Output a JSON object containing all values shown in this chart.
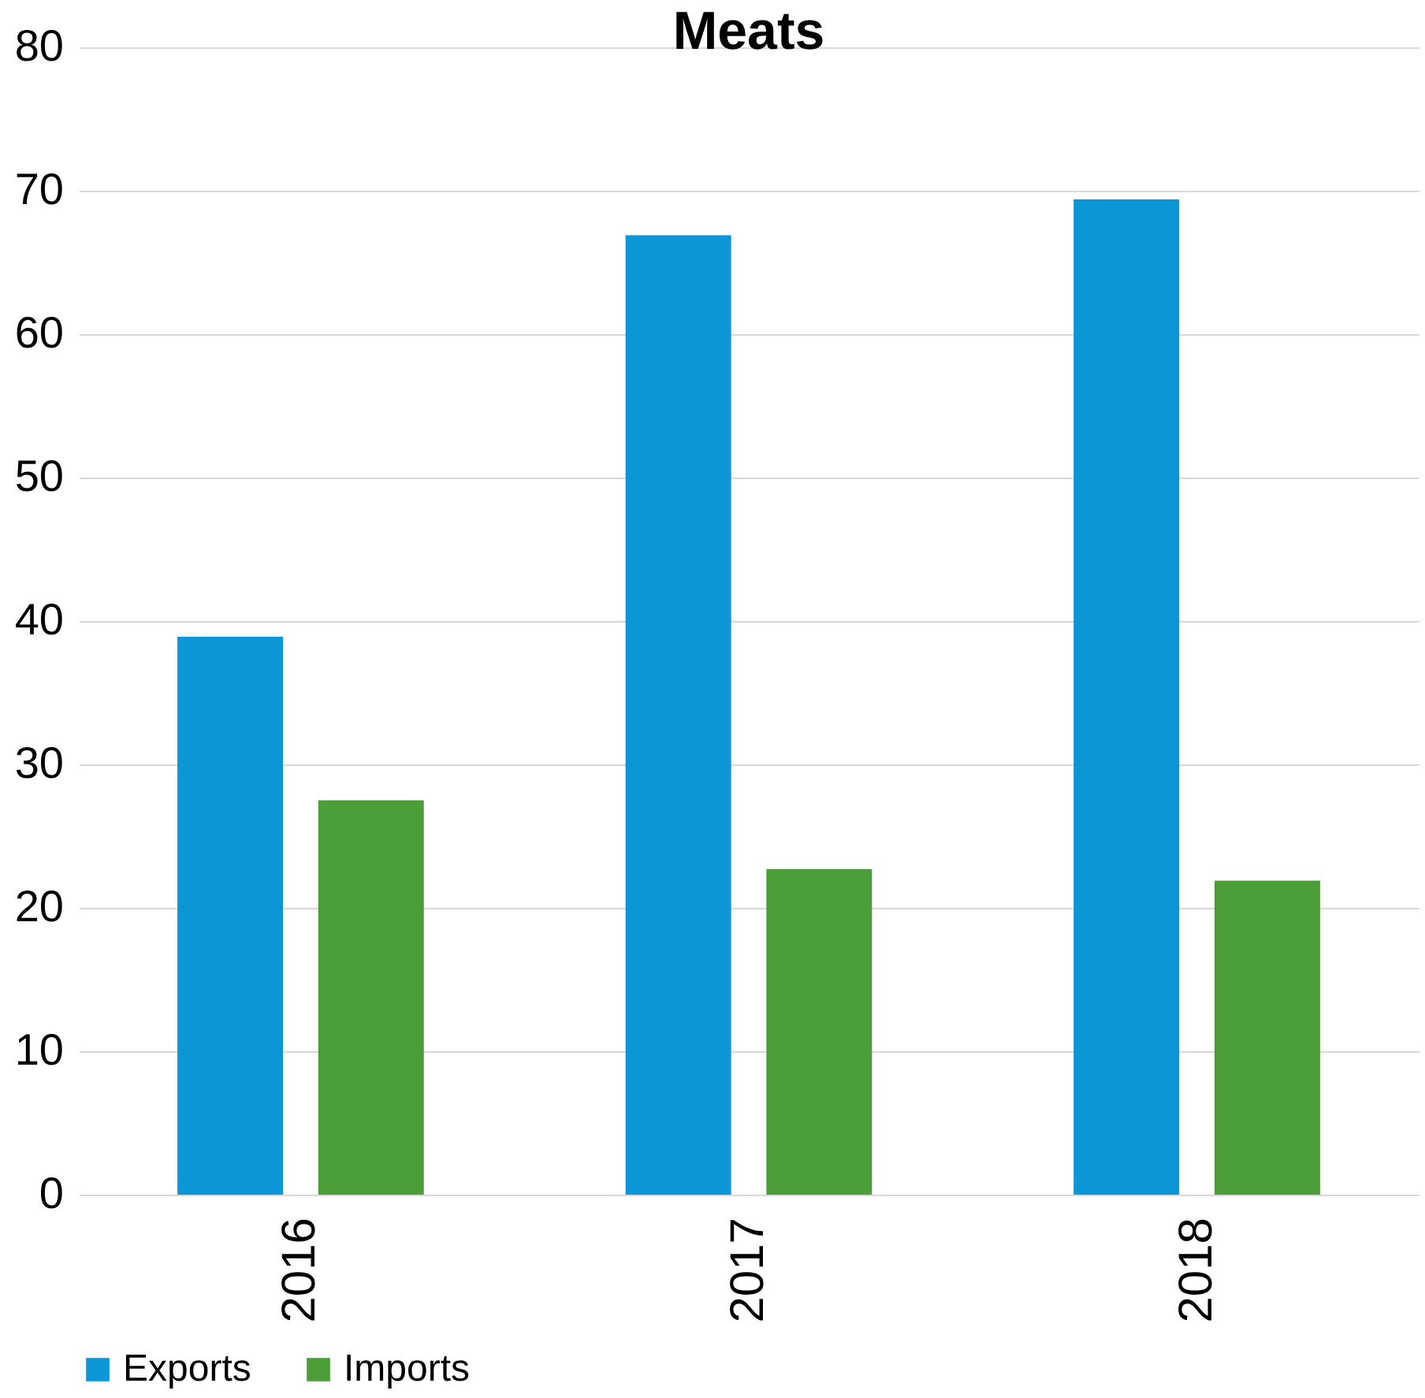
{
  "chart_data": {
    "type": "bar",
    "title": "Meats",
    "categories": [
      "2016",
      "2017",
      "2018"
    ],
    "series": [
      {
        "name": "Exports",
        "color": "#0b96d8",
        "values": [
          38.9,
          66.9,
          69.4
        ]
      },
      {
        "name": "Imports",
        "color": "#4c9f38",
        "values": [
          27.5,
          22.7,
          21.9
        ]
      }
    ],
    "ylim": [
      0,
      80
    ],
    "yticks": [
      0,
      10,
      20,
      30,
      40,
      50,
      60,
      70,
      80
    ],
    "grid": "y",
    "legend": "bottom"
  }
}
